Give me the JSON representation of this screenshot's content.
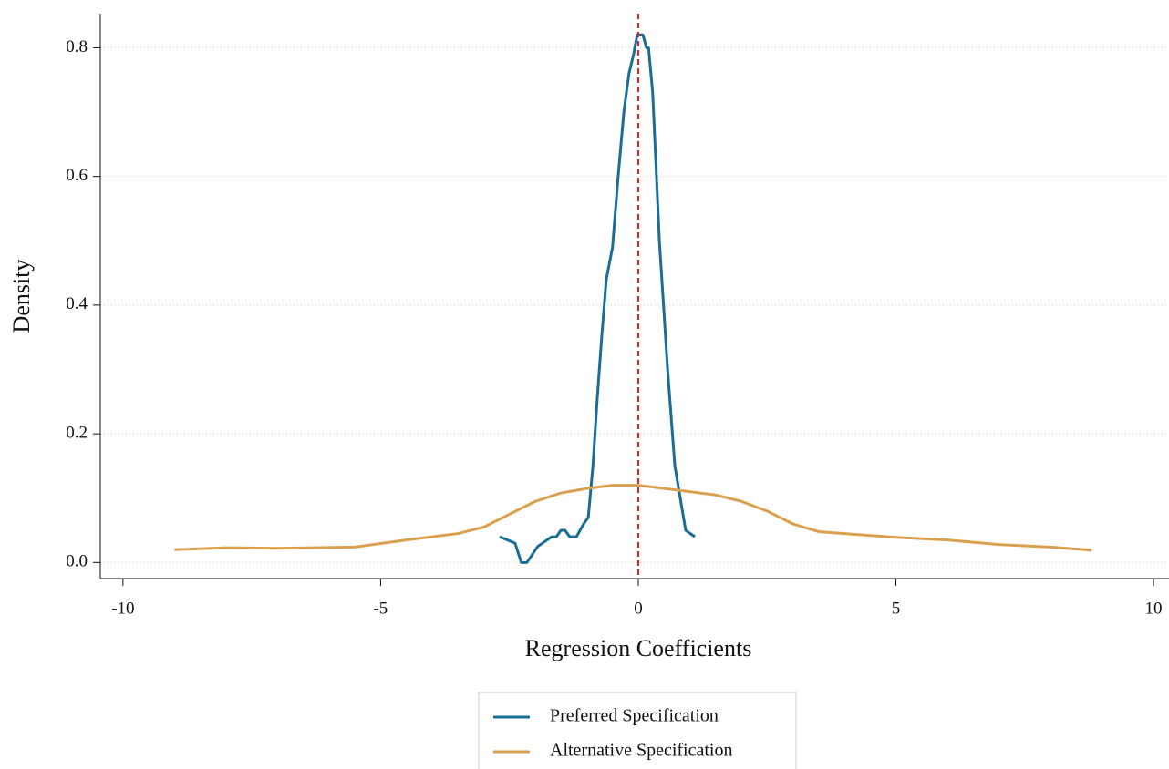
{
  "chart_data": {
    "type": "line",
    "x_label": "Regression Coefficients",
    "y_label": "Density",
    "xlim": [
      -10.44,
      10.3
    ],
    "ylim": [
      -0.025,
      0.853
    ],
    "xticks": [
      -10,
      -5,
      0,
      5,
      10
    ],
    "yticks": [
      {
        "value": 0,
        "label": "0.0"
      },
      0.2,
      0.4,
      0.6,
      0.8
    ],
    "grid": true,
    "vline": 0,
    "vline_color": "#e0201b",
    "legend": "bottom",
    "series": [
      {
        "name": "Preferred Specification",
        "color": "#1a6e94",
        "x": [
          -2.69,
          -2.39,
          -2.27,
          -2.16,
          -1.95,
          -1.68,
          -1.59,
          -1.5,
          -1.42,
          -1.33,
          -1.2,
          -1.06,
          -0.97,
          -0.88,
          -0.8,
          -0.71,
          -0.62,
          -0.5,
          -0.39,
          -0.28,
          -0.18,
          -0.09,
          -0.02,
          0.09,
          0.16,
          0.2,
          0.28,
          0.41,
          0.57,
          0.71,
          0.92,
          1.1
        ],
        "values": [
          0.04,
          0.03,
          0.0,
          0.0,
          0.025,
          0.04,
          0.04,
          0.05,
          0.05,
          0.04,
          0.04,
          0.06,
          0.07,
          0.15,
          0.25,
          0.35,
          0.44,
          0.49,
          0.6,
          0.7,
          0.76,
          0.79,
          0.82,
          0.82,
          0.8,
          0.8,
          0.73,
          0.5,
          0.3,
          0.15,
          0.05,
          0.04
        ]
      },
      {
        "name": "Alternative Specification",
        "color": "#d9a050",
        "x": [
          -9,
          -8,
          -7,
          -5.5,
          -4.5,
          -3.5,
          -3,
          -2.5,
          -2,
          -1.5,
          -1,
          -0.5,
          0,
          0.5,
          1,
          1.5,
          2,
          2.5,
          3,
          3.5,
          4,
          5,
          6,
          7,
          8,
          8.8
        ],
        "values": [
          0.02,
          0.023,
          0.022,
          0.024,
          0.035,
          0.045,
          0.055,
          0.075,
          0.095,
          0.108,
          0.115,
          0.12,
          0.12,
          0.115,
          0.11,
          0.105,
          0.095,
          0.08,
          0.06,
          0.048,
          0.045,
          0.039,
          0.035,
          0.028,
          0.024,
          0.019
        ]
      }
    ]
  }
}
